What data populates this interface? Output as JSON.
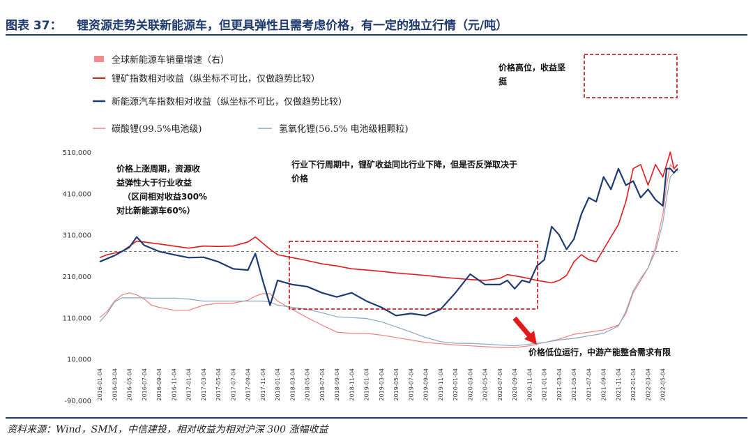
{
  "header": {
    "figure_no": "图表 37：",
    "title": "锂资源走势关联新能源车，但更具弹性且需考虑价格，有一定的独立行情（元/吨）"
  },
  "source": "资料来源：Wind，SMM，中信建投，相对收益为相对沪深 300 涨幅收益",
  "colors": {
    "lithium_index": "#e31a1c",
    "nev_index": "#1f3b73",
    "lithium_carbonate": "#f08080",
    "lithium_hydroxide": "#8aa8c0",
    "nev_growth_bar": "#f28b8b",
    "annotation_box": "#c00000",
    "arrow": "#e31a1c",
    "title": "#1f3a6e"
  },
  "legend": [
    {
      "label": "全球新能源车销量增速（右）",
      "swatch": "bar",
      "color": "#f28b8b"
    },
    {
      "label": "锂矿指数相对收益（纵坐标不可比，仅做趋势比较）",
      "swatch": "line",
      "color": "#e31a1c"
    },
    {
      "label": "新能源汽车指数相对收益（纵坐标不可比，仅做趋势比较）",
      "swatch": "line",
      "color": "#1f3b73"
    },
    {
      "label": "碳酸锂(99.5%电池级)",
      "swatch": "line",
      "color": "#f08080"
    },
    {
      "label": "氢氧化锂(56.5% 电池级粗颗粒)",
      "swatch": "line",
      "color": "#8aa8c0"
    }
  ],
  "annotations": [
    {
      "id": "a1",
      "lines": [
        "价格上涨周期，资源收",
        "益弹性大于行业收益",
        "（区间相对收益300%",
        "对比新能源车60%）"
      ]
    },
    {
      "id": "a2",
      "lines": [
        "行业下行周期中，锂矿收益同比行业下降，但是否反弹取决于",
        "价格"
      ]
    },
    {
      "id": "a3",
      "lines": [
        "价格高位，收益坚",
        "挺"
      ]
    },
    {
      "id": "a4",
      "lines": [
        "价格低位运行，中游产能整合需求有限"
      ]
    }
  ],
  "chart_data": {
    "type": "line",
    "title": "锂资源走势关联新能源车，但更具弹性且需考虑价格，有一定的独立行情（元/吨）",
    "ylim": [
      -90000,
      510000
    ],
    "y_ticks": [
      "510,000",
      "410,000",
      "310,000",
      "210,000",
      "110,000",
      "10,000",
      "-90,000"
    ],
    "y_tick_values": [
      510000,
      410000,
      310000,
      210000,
      110000,
      10000,
      -90000
    ],
    "reference_line": 270000,
    "x_ticks": [
      "2016-01-04",
      "2016-03-04",
      "2016-05-04",
      "2016-07-04",
      "2016-09-04",
      "2016-11-04",
      "2017-01-04",
      "2017-03-04",
      "2017-05-04",
      "2017-07-04",
      "2017-09-04",
      "2017-11-04",
      "2018-01-04",
      "2018-03-04",
      "2018-05-04",
      "2018-07-04",
      "2018-09-04",
      "2018-11-04",
      "2019-01-04",
      "2019-03-04",
      "2019-05-04",
      "2019-07-04",
      "2019-09-04",
      "2019-11-04",
      "2020-01-04",
      "2020-03-04",
      "2020-05-04",
      "2020-07-04",
      "2020-09-04",
      "2020-11-04",
      "2021-01-04",
      "2021-03-04",
      "2021-05-04",
      "2021-07-04",
      "2021-09-04",
      "2021-11-04",
      "2022-01-04",
      "2022-03-04",
      "2022-05-04"
    ],
    "series": [
      {
        "name": "锂矿指数相对收益（纵坐标不可比，仅做趋势比较）",
        "x": [
          0,
          1,
          3,
          5,
          8,
          10,
          12,
          14,
          16,
          18,
          20,
          21,
          23,
          24,
          26,
          28,
          30,
          32,
          34,
          36,
          38,
          40,
          42,
          44,
          46,
          48,
          50,
          52,
          54,
          55,
          57,
          59,
          61,
          62,
          63,
          64,
          65,
          66,
          67,
          68,
          69,
          70,
          71,
          72,
          73,
          74,
          75,
          76,
          77,
          77.5,
          78
        ],
        "values": [
          255000,
          262000,
          270000,
          295000,
          288000,
          283000,
          278000,
          283000,
          282000,
          283000,
          293000,
          305000,
          275000,
          262000,
          255000,
          248000,
          240000,
          235000,
          228000,
          225000,
          222000,
          218000,
          215000,
          212000,
          208000,
          205000,
          202000,
          200000,
          205000,
          214000,
          208000,
          200000,
          194000,
          200000,
          212000,
          245000,
          262000,
          250000,
          245000,
          275000,
          305000,
          335000,
          390000,
          470000,
          480000,
          430000,
          480000,
          450000,
          510000,
          470000,
          480000
        ]
      },
      {
        "name": "新能源汽车指数相对收益（纵坐标不可比，仅做趋势比较）",
        "x": [
          0,
          2,
          4,
          5,
          6,
          8,
          10,
          12,
          14,
          16,
          18,
          20,
          21,
          22,
          23,
          24,
          26,
          28,
          30,
          32,
          34,
          36,
          38,
          40,
          42,
          44,
          46,
          48,
          50,
          52,
          54,
          55,
          56,
          57,
          58,
          59,
          60,
          61,
          62,
          63,
          64,
          65,
          66,
          67,
          68,
          69,
          70,
          71,
          72,
          73,
          74,
          75,
          76,
          76.5,
          77,
          77.5,
          78
        ],
        "values": [
          245000,
          260000,
          280000,
          305000,
          285000,
          270000,
          262000,
          255000,
          256000,
          245000,
          228000,
          225000,
          265000,
          200000,
          140000,
          200000,
          190000,
          185000,
          170000,
          160000,
          170000,
          150000,
          135000,
          115000,
          120000,
          115000,
          130000,
          170000,
          215000,
          190000,
          190000,
          200000,
          180000,
          200000,
          195000,
          235000,
          250000,
          330000,
          310000,
          275000,
          300000,
          360000,
          400000,
          390000,
          450000,
          420000,
          470000,
          430000,
          440000,
          400000,
          420000,
          395000,
          380000,
          470000,
          470000,
          460000,
          470000
        ]
      },
      {
        "name": "碳酸锂(99.5%电池级)",
        "x": [
          0,
          1,
          2,
          3,
          4,
          5,
          6,
          7,
          8,
          10,
          12,
          14,
          16,
          18,
          20,
          21,
          22,
          23,
          24,
          26,
          28,
          30,
          32,
          34,
          36,
          38,
          40,
          42,
          44,
          46,
          48,
          50,
          52,
          54,
          56,
          58,
          60,
          62,
          64,
          66,
          68,
          70,
          71,
          72,
          73,
          74,
          75,
          76,
          76.5,
          77,
          77.5,
          78
        ],
        "values": [
          110000,
          125000,
          150000,
          165000,
          170000,
          165000,
          155000,
          140000,
          135000,
          128000,
          128000,
          140000,
          145000,
          145000,
          152000,
          162000,
          168000,
          168000,
          150000,
          130000,
          110000,
          92000,
          75000,
          72000,
          72000,
          68000,
          62000,
          56000,
          50000,
          47000,
          44000,
          42000,
          40000,
          38000,
          38000,
          42000,
          50000,
          58000,
          70000,
          75000,
          80000,
          92000,
          120000,
          170000,
          200000,
          230000,
          280000,
          360000,
          430000,
          480000,
          470000,
          465000
        ]
      },
      {
        "name": "氢氧化锂(56.5% 电池级粗颗粒)",
        "x": [
          0,
          1,
          2,
          3,
          4,
          5,
          6,
          7,
          8,
          10,
          12,
          14,
          16,
          18,
          20,
          21,
          22,
          23,
          24,
          26,
          28,
          30,
          32,
          34,
          36,
          38,
          40,
          42,
          44,
          46,
          48,
          50,
          52,
          54,
          56,
          58,
          60,
          62,
          64,
          66,
          68,
          70,
          71,
          72,
          73,
          74,
          75,
          76,
          76.5,
          77,
          77.5,
          78
        ],
        "values": [
          100000,
          120000,
          148000,
          158000,
          158000,
          158000,
          158000,
          157000,
          157000,
          157000,
          155000,
          150000,
          150000,
          150000,
          150000,
          150000,
          150000,
          148000,
          140000,
          135000,
          130000,
          122000,
          112000,
          110000,
          108000,
          100000,
          88000,
          75000,
          62000,
          52000,
          48000,
          48000,
          46000,
          44000,
          42000,
          46000,
          50000,
          56000,
          60000,
          66000,
          72000,
          90000,
          125000,
          175000,
          205000,
          230000,
          270000,
          340000,
          400000,
          450000,
          460000,
          470000
        ]
      }
    ]
  }
}
